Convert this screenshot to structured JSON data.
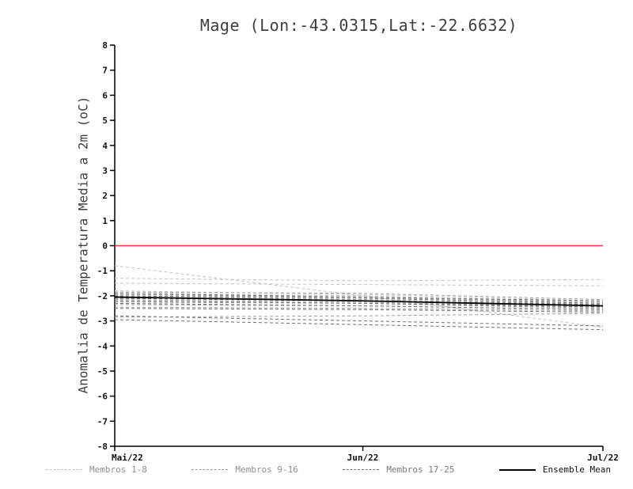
{
  "chart_data": {
    "type": "line",
    "title": "Mage (Lon:-43.0315,Lat:-22.6632)",
    "ylabel": "Anomalia de Temperatura Media a 2m (oC)",
    "xlabel": "",
    "x": [
      0,
      31,
      61
    ],
    "x_ticks": [
      {
        "pos": 0,
        "label": "Mai/22"
      },
      {
        "pos": 31,
        "label": "Jun/22"
      },
      {
        "pos": 61,
        "label": "Jul/22"
      }
    ],
    "ylim": [
      -8,
      8
    ],
    "ytick_step": 1,
    "grid": false,
    "axis_color": "#000000",
    "zero_line": {
      "value": 0,
      "color": "#ee3b3b"
    },
    "series_groups": [
      {
        "name": "Membros 1-8",
        "color": "#c3c3c3",
        "style": "dashed",
        "members": [
          [
            -0.8,
            -2.0,
            -3.25
          ],
          [
            -1.3,
            -1.4,
            -1.35
          ],
          [
            -1.5,
            -1.55,
            -1.6
          ],
          [
            -1.8,
            -1.95,
            -2.2
          ],
          [
            -1.9,
            -2.0,
            -2.3
          ],
          [
            -2.0,
            -2.05,
            -2.35
          ],
          [
            -2.1,
            -2.2,
            -2.45
          ],
          [
            -2.2,
            -2.3,
            -2.5
          ]
        ]
      },
      {
        "name": "Membros 9-16",
        "color": "#9d9d9d",
        "style": "dashed",
        "members": [
          [
            -1.85,
            -1.9,
            -2.15
          ],
          [
            -1.95,
            -2.05,
            -2.25
          ],
          [
            -2.05,
            -2.15,
            -2.35
          ],
          [
            -2.15,
            -2.25,
            -2.45
          ],
          [
            -2.25,
            -2.3,
            -2.5
          ],
          [
            -2.35,
            -2.4,
            -2.55
          ],
          [
            -2.45,
            -2.5,
            -2.6
          ],
          [
            -2.85,
            -2.8,
            -2.7
          ]
        ]
      },
      {
        "name": "Membros 17-25",
        "color": "#6f6f6f",
        "style": "dashed",
        "members": [
          [
            -1.9,
            -2.05,
            -2.2
          ],
          [
            -2.0,
            -2.1,
            -2.3
          ],
          [
            -2.1,
            -2.2,
            -2.35
          ],
          [
            -2.2,
            -2.3,
            -2.45
          ],
          [
            -2.3,
            -2.4,
            -2.55
          ],
          [
            -2.5,
            -2.55,
            -2.65
          ],
          [
            -2.8,
            -3.0,
            -3.2
          ],
          [
            -2.95,
            -3.15,
            -3.35
          ],
          [
            -2.05,
            -2.2,
            -2.4
          ]
        ]
      }
    ],
    "ensemble_mean": {
      "name": "Ensemble Mean",
      "color": "#000000",
      "style": "solid",
      "values": [
        -2.05,
        -2.2,
        -2.4
      ]
    },
    "legend": {
      "position": "bottom",
      "entries": [
        {
          "label": "Membros 1-8",
          "color": "#c3c3c3",
          "style": "dashed",
          "label_color": "#8f8f8f"
        },
        {
          "label": "Membros 9-16",
          "color": "#9d9d9d",
          "style": "dashed",
          "label_color": "#8f8f8f"
        },
        {
          "label": "Membros 17-25",
          "color": "#6f6f6f",
          "style": "dashed",
          "label_color": "#7a7a7a"
        },
        {
          "label": "Ensemble Mean",
          "color": "#000000",
          "style": "solid",
          "label_color": "#111111"
        }
      ]
    }
  }
}
